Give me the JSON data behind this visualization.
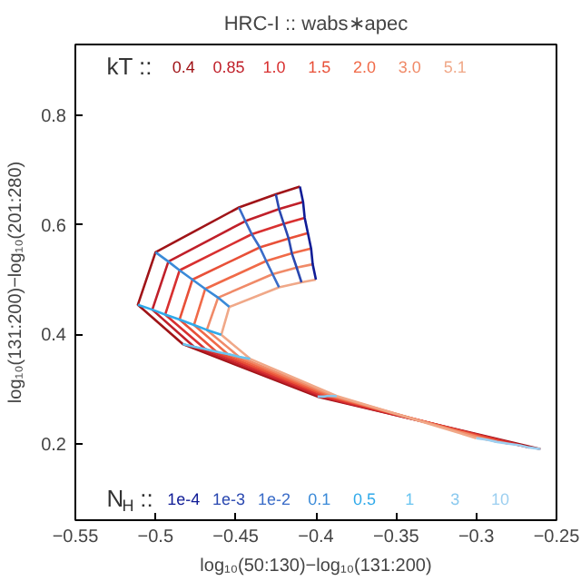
{
  "chart_data": {
    "type": "line",
    "title": "HRC-I :: wabs∗apec",
    "xlabel": "log₁₀(50:130)−log₁₀(131:200)",
    "ylabel": "log₁₀(131:200)−log₁₀(201:280)",
    "xlim": [
      -0.55,
      -0.25
    ],
    "ylim": [
      0.06,
      0.93
    ],
    "xticks": [
      -0.55,
      -0.5,
      -0.45,
      -0.4,
      -0.35,
      -0.3,
      -0.25
    ],
    "yticks": [
      0.2,
      0.4,
      0.6,
      0.8
    ],
    "grid": false,
    "legend": "bottom right",
    "annotations": [
      "kT ::",
      "N$_{H}$ ::"
    ],
    "series": [
      {
        "name": "0.4",
        "color": "#a01418",
        "x": [
          -0.41,
          -0.425,
          -0.448,
          -0.5,
          -0.511,
          -0.483,
          -0.399,
          -0.26
        ],
        "values": [
          0.67,
          0.656,
          0.632,
          0.55,
          0.454,
          0.382,
          0.286,
          0.19
        ]
      },
      {
        "name": "0.85",
        "color": "#c0202a",
        "x": [
          -0.408,
          -0.423,
          -0.444,
          -0.492,
          -0.502,
          -0.476,
          -0.397,
          -0.267
        ],
        "values": [
          0.642,
          0.629,
          0.607,
          0.533,
          0.445,
          0.377,
          0.286,
          0.193
        ]
      },
      {
        "name": "1.0",
        "color": "#d83030",
        "x": [
          -0.407,
          -0.42,
          -0.44,
          -0.485,
          -0.494,
          -0.469,
          -0.395,
          -0.273
        ],
        "values": [
          0.613,
          0.602,
          0.583,
          0.517,
          0.436,
          0.373,
          0.286,
          0.197
        ]
      },
      {
        "name": "1.5",
        "color": "#e85038",
        "x": [
          -0.405,
          -0.417,
          -0.435,
          -0.477,
          -0.485,
          -0.462,
          -0.393,
          -0.28
        ],
        "values": [
          0.585,
          0.575,
          0.559,
          0.5,
          0.427,
          0.368,
          0.287,
          0.2
        ]
      },
      {
        "name": "2.0",
        "color": "#f06a48",
        "x": [
          -0.403,
          -0.415,
          -0.431,
          -0.469,
          -0.476,
          -0.455,
          -0.391,
          -0.287
        ],
        "values": [
          0.557,
          0.548,
          0.534,
          0.483,
          0.417,
          0.364,
          0.287,
          0.203
        ]
      },
      {
        "name": "3.0",
        "color": "#f08a68",
        "x": [
          -0.402,
          -0.412,
          -0.427,
          -0.461,
          -0.468,
          -0.448,
          -0.389,
          -0.293
        ],
        "values": [
          0.528,
          0.522,
          0.51,
          0.467,
          0.408,
          0.359,
          0.287,
          0.207
        ]
      },
      {
        "name": "5.1",
        "color": "#f0a888",
        "x": [
          -0.4,
          -0.409,
          -0.423,
          -0.454,
          -0.459,
          -0.441,
          -0.387,
          -0.3
        ],
        "values": [
          0.5,
          0.495,
          0.486,
          0.45,
          0.399,
          0.355,
          0.287,
          0.21
        ]
      },
      {
        "name": "1e-4",
        "color": "#101c96",
        "x": [
          -0.41,
          -0.408,
          -0.407,
          -0.405,
          -0.403,
          -0.402,
          -0.4
        ],
        "values": [
          0.67,
          0.642,
          0.613,
          0.585,
          0.557,
          0.528,
          0.5
        ]
      },
      {
        "name": "1e-3",
        "color": "#2a48b0",
        "x": [
          -0.425,
          -0.423,
          -0.42,
          -0.417,
          -0.415,
          -0.412,
          -0.409
        ],
        "values": [
          0.656,
          0.629,
          0.602,
          0.575,
          0.548,
          0.522,
          0.495
        ]
      },
      {
        "name": "1e-2",
        "color": "#3a6cc8",
        "x": [
          -0.448,
          -0.444,
          -0.44,
          -0.435,
          -0.431,
          -0.427,
          -0.423
        ],
        "values": [
          0.632,
          0.607,
          0.583,
          0.559,
          0.534,
          0.51,
          0.486
        ]
      },
      {
        "name": "0.1",
        "color": "#3a8ad8",
        "x": [
          -0.5,
          -0.492,
          -0.485,
          -0.477,
          -0.469,
          -0.461,
          -0.454
        ],
        "values": [
          0.55,
          0.533,
          0.517,
          0.5,
          0.483,
          0.467,
          0.45
        ]
      },
      {
        "name": "0.5",
        "color": "#30aaea",
        "x": [
          -0.511,
          -0.502,
          -0.494,
          -0.485,
          -0.476,
          -0.468,
          -0.459
        ],
        "values": [
          0.454,
          0.445,
          0.436,
          0.427,
          0.417,
          0.408,
          0.399
        ]
      },
      {
        "name": "1",
        "color": "#68c4f0",
        "x": [
          -0.483,
          -0.476,
          -0.469,
          -0.462,
          -0.455,
          -0.448,
          -0.441
        ],
        "values": [
          0.382,
          0.377,
          0.373,
          0.368,
          0.364,
          0.359,
          0.355
        ]
      },
      {
        "name": "3",
        "color": "#88c8ee",
        "x": [
          -0.399,
          -0.397,
          -0.395,
          -0.393,
          -0.391,
          -0.389,
          -0.387
        ],
        "values": [
          0.286,
          0.286,
          0.286,
          0.287,
          0.287,
          0.287,
          0.287
        ]
      },
      {
        "name": "10",
        "color": "#9ccff0",
        "x": [
          -0.26,
          -0.267,
          -0.273,
          -0.28,
          -0.287,
          -0.293,
          -0.3
        ],
        "values": [
          0.19,
          0.193,
          0.197,
          0.2,
          0.203,
          0.207,
          0.21
        ]
      }
    ]
  }
}
